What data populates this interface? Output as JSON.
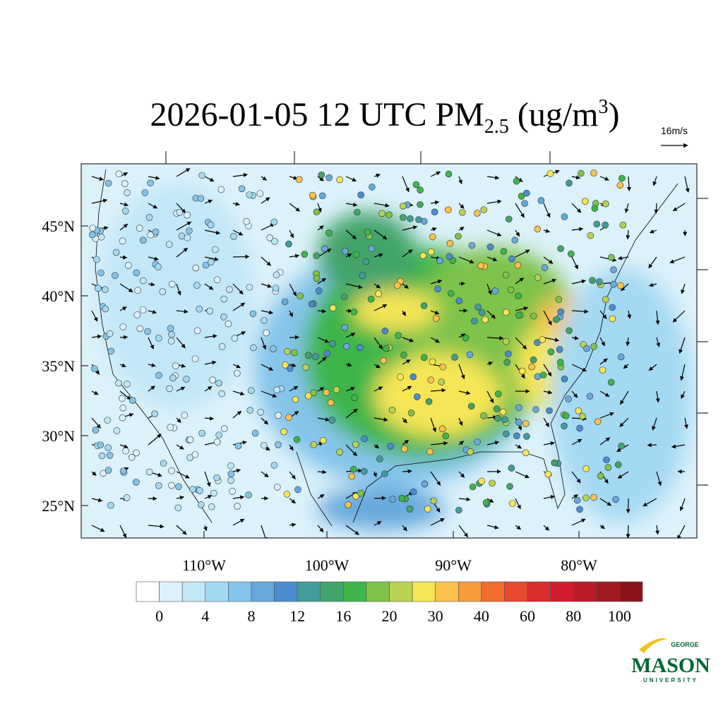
{
  "title": {
    "main": "2026-01-05 12 UTC PM",
    "subscript": "2.5",
    "unit": " (ug/m",
    "superscript": "3",
    "close": ")"
  },
  "vector_reference": "16m/s",
  "latitude_labels": [
    "45°N",
    "40°N",
    "35°N",
    "30°N",
    "25°N"
  ],
  "longitude_labels": [
    "110°W",
    "100°W",
    "90°W",
    "80°W"
  ],
  "colorbar": {
    "colors": [
      "#ffffff",
      "#dcf1fa",
      "#c2e7f7",
      "#a4d9f3",
      "#85c4ea",
      "#66a9dc",
      "#4a8dcf",
      "#429c9a",
      "#42a46a",
      "#3db54a",
      "#7ec34c",
      "#b8d352",
      "#f6e654",
      "#fbc24b",
      "#f89b3c",
      "#f26c2c",
      "#e84a30",
      "#dc2c2c",
      "#d31c2e",
      "#b91b27",
      "#a21920",
      "#8a1218"
    ],
    "labels": [
      "0",
      "4",
      "8",
      "12",
      "16",
      "20",
      "30",
      "40",
      "60",
      "80",
      "100"
    ]
  },
  "logo": {
    "top": "GEORGE",
    "main": "MASON",
    "bottom": "UNIVERSITY"
  }
}
